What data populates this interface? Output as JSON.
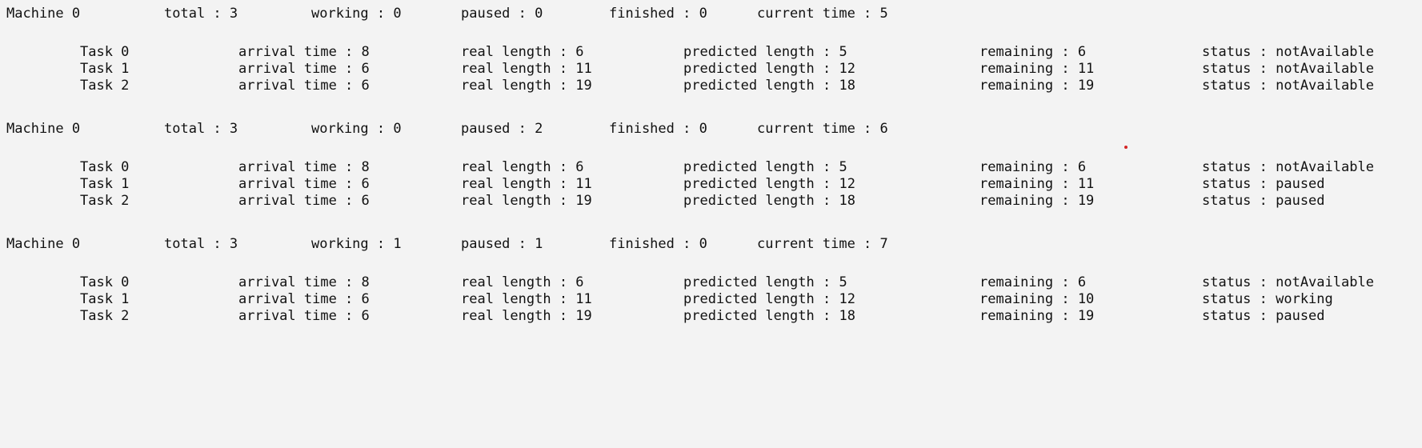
{
  "console": {
    "blocks": [
      {
        "machine": {
          "name": "Machine 0",
          "total": "total : 3",
          "working": "working : 0",
          "paused": "paused : 0",
          "finished": "finished : 0",
          "current_time": "current time : 5"
        },
        "tasks": [
          {
            "name": "Task 0",
            "arrival": "arrival time : 8",
            "real": "real length : 6",
            "predicted": "predicted length : 5",
            "remaining": "remaining : 6",
            "status": "status : notAvailable"
          },
          {
            "name": "Task 1",
            "arrival": "arrival time : 6",
            "real": "real length : 11",
            "predicted": "predicted length : 12",
            "remaining": "remaining : 11",
            "status": "status : notAvailable"
          },
          {
            "name": "Task 2",
            "arrival": "arrival time : 6",
            "real": "real length : 19",
            "predicted": "predicted length : 18",
            "remaining": "remaining : 19",
            "status": "status : notAvailable"
          }
        ]
      },
      {
        "machine": {
          "name": "Machine 0",
          "total": "total : 3",
          "working": "working : 0",
          "paused": "paused : 2",
          "finished": "finished : 0",
          "current_time": "current time : 6"
        },
        "tasks": [
          {
            "name": "Task 0",
            "arrival": "arrival time : 8",
            "real": "real length : 6",
            "predicted": "predicted length : 5",
            "remaining": "remaining : 6",
            "status": "status : notAvailable"
          },
          {
            "name": "Task 1",
            "arrival": "arrival time : 6",
            "real": "real length : 11",
            "predicted": "predicted length : 12",
            "remaining": "remaining : 11",
            "status": "status : paused"
          },
          {
            "name": "Task 2",
            "arrival": "arrival time : 6",
            "real": "real length : 19",
            "predicted": "predicted length : 18",
            "remaining": "remaining : 19",
            "status": "status : paused"
          }
        ]
      },
      {
        "machine": {
          "name": "Machine 0",
          "total": "total : 3",
          "working": "working : 1",
          "paused": "paused : 1",
          "finished": "finished : 0",
          "current_time": "current time : 7"
        },
        "tasks": [
          {
            "name": "Task 0",
            "arrival": "arrival time : 8",
            "real": "real length : 6",
            "predicted": "predicted length : 5",
            "remaining": "remaining : 6",
            "status": "status : notAvailable"
          },
          {
            "name": "Task 1",
            "arrival": "arrival time : 6",
            "real": "real length : 11",
            "predicted": "predicted length : 12",
            "remaining": "remaining : 10",
            "status": "status : working"
          },
          {
            "name": "Task 2",
            "arrival": "arrival time : 6",
            "real": "real length : 19",
            "predicted": "predicted length : 18",
            "remaining": "remaining : 19",
            "status": "status : paused"
          }
        ]
      }
    ]
  },
  "colors": {
    "background": "#f3f3f3",
    "text": "#111111",
    "marker": "#d42424"
  }
}
